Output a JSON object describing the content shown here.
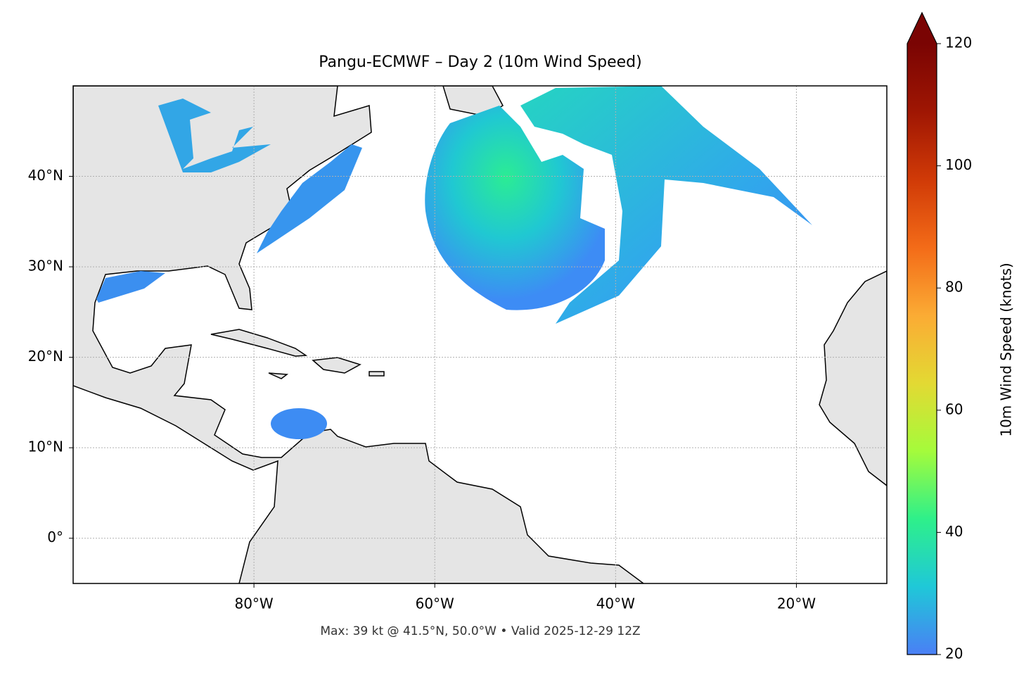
{
  "chart_data": {
    "type": "map",
    "title": "Pangu-ECMWF – Day 2 (10m Wind Speed)",
    "footnote": "Max: 39 kt @ 41.5°N, 50.0°W • Valid 2025-12-29 12Z",
    "xlim": [
      -100,
      -10
    ],
    "ylim": [
      -5,
      50
    ],
    "xticks": [
      {
        "value": -80,
        "label": "80°W"
      },
      {
        "value": -60,
        "label": "60°W"
      },
      {
        "value": -40,
        "label": "40°W"
      },
      {
        "value": -20,
        "label": "20°W"
      }
    ],
    "yticks": [
      {
        "value": 0,
        "label": "0°"
      },
      {
        "value": 10,
        "label": "10°N"
      },
      {
        "value": 20,
        "label": "20°N"
      },
      {
        "value": 30,
        "label": "30°N"
      },
      {
        "value": 40,
        "label": "40°N"
      }
    ],
    "grid": true,
    "colorbar": {
      "label": "10m Wind Speed (knots)",
      "lim": [
        20,
        120
      ],
      "ticks": [
        20,
        40,
        60,
        80,
        100,
        120
      ],
      "extend": "max",
      "colors": [
        "#4a7ff5",
        "#1fc8d8",
        "#2ef08a",
        "#a5fb3b",
        "#e3d933",
        "#fbab34",
        "#f36b18",
        "#d03a07",
        "#9f1603",
        "#7a0403"
      ]
    }
  }
}
